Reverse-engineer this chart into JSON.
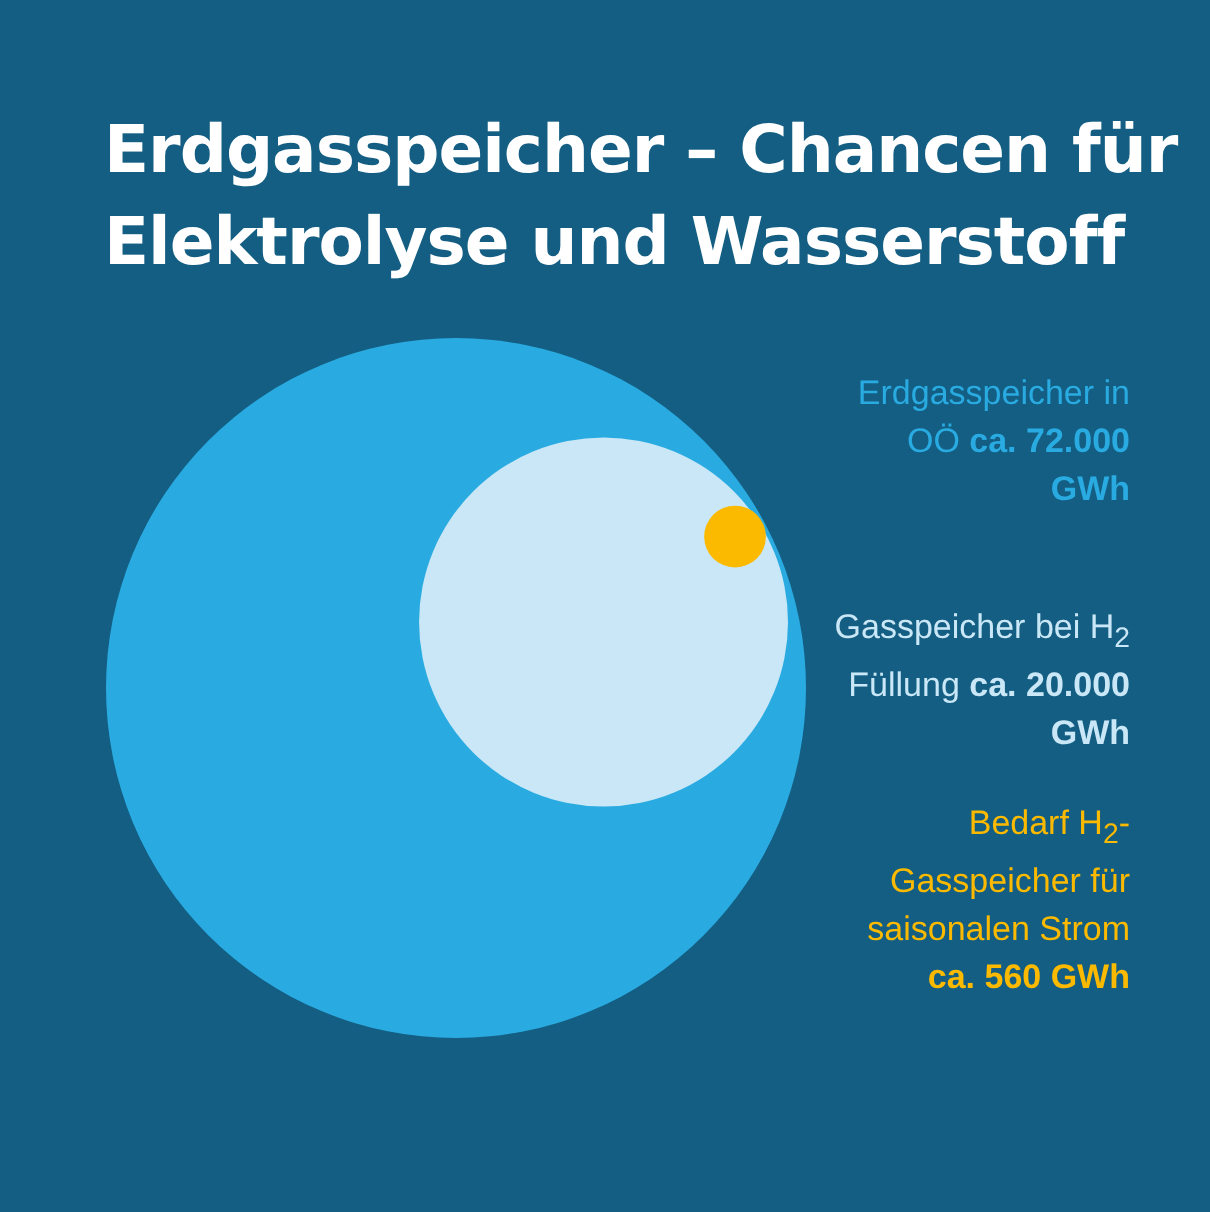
{
  "chart_data": {
    "type": "other",
    "title": "Erdgasspeicher – Chancen für Elektrolyse und Wasserstoff",
    "categories": [
      "Erdgasspeicher in OÖ",
      "Gasspeicher bei H$_{2}$ Füllung",
      "Bedarf H$_{2}$-Gasspeicher für saisonalen Strom"
    ],
    "values": [
      72000,
      20000,
      560
    ],
    "value_labels": [
      "ca. 72.000 GWh",
      "ca. 20.000 GWh",
      "ca. 560 GWh"
    ],
    "colors": [
      "#29abe2",
      "#c9e7f6",
      "#fbba00"
    ]
  }
}
